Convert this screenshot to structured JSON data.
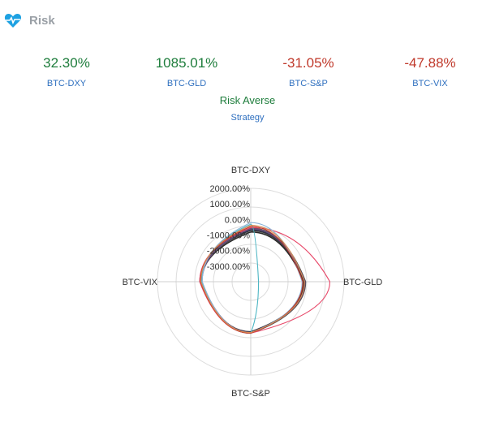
{
  "header": {
    "title": "Risk"
  },
  "metrics": [
    {
      "value": "32.30%",
      "label": "BTC-DXY",
      "status": "positive"
    },
    {
      "value": "1085.01%",
      "label": "BTC-GLD",
      "status": "positive"
    },
    {
      "value": "-31.05%",
      "label": "BTC-S&P",
      "status": "negative"
    },
    {
      "value": "-47.88%",
      "label": "BTC-VIX",
      "status": "negative"
    }
  ],
  "strategy": {
    "value": "Risk Averse",
    "label": "Strategy"
  },
  "colors": {
    "positive": "#1e7d3c",
    "negative": "#c0392b",
    "label": "#2e6fbf",
    "heart": "#1da1e2"
  },
  "chart_data": {
    "type": "radar",
    "axes": [
      "BTC-DXY",
      "BTC-GLD",
      "BTC-S&P",
      "BTC-VIX"
    ],
    "radial_ticks": [
      "2000.00%",
      "1000.00%",
      "0.00%",
      "-1000.00%",
      "-2000.00%",
      "-3000.00%"
    ],
    "radial_range": [
      -4000,
      2000
    ],
    "series": [
      {
        "values": [
          -800,
          -600,
          -750,
          -820
        ],
        "color": "#2a2a2a"
      },
      {
        "values": [
          -700,
          -550,
          -780,
          -760
        ],
        "color": "#3c3c3c"
      },
      {
        "values": [
          -640,
          -500,
          -760,
          -740
        ],
        "color": "#1f2d4e"
      },
      {
        "values": [
          -560,
          -480,
          -700,
          -800
        ],
        "color": "#4d4d4d"
      },
      {
        "values": [
          -600,
          -520,
          -740,
          -860
        ],
        "color": "#6b4e7a"
      },
      {
        "values": [
          -520,
          1085,
          -690,
          -720
        ],
        "color": "#e8496a"
      },
      {
        "values": [
          -300,
          -3500,
          -700,
          -850
        ],
        "color": "#4db6c4"
      },
      {
        "values": [
          -200,
          -700,
          -720,
          -880
        ],
        "color": "#8ab4d8"
      },
      {
        "values": [
          -450,
          -650,
          -690,
          -760
        ],
        "color": "#c0392b"
      },
      {
        "values": [
          -380,
          -540,
          -730,
          -790
        ],
        "color": "#d98a50"
      }
    ]
  }
}
